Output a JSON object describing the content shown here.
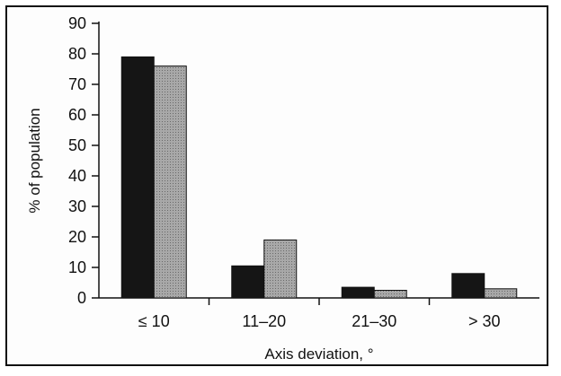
{
  "chart_data": {
    "type": "bar",
    "categories": [
      "≤ 10",
      "11–20",
      "21–30",
      "> 30"
    ],
    "series": [
      {
        "values": [
          79,
          10.5,
          3.5,
          8
        ],
        "color": "#151515"
      },
      {
        "values": [
          76,
          19,
          2.5,
          3
        ],
        "color": "#9a9a9a"
      }
    ],
    "xlabel": "Axis deviation, °",
    "ylabel": "% of population",
    "ylim": [
      0,
      90
    ],
    "yticks": [
      0,
      10,
      20,
      30,
      40,
      50,
      60,
      70,
      80,
      90
    ],
    "grid": false
  }
}
